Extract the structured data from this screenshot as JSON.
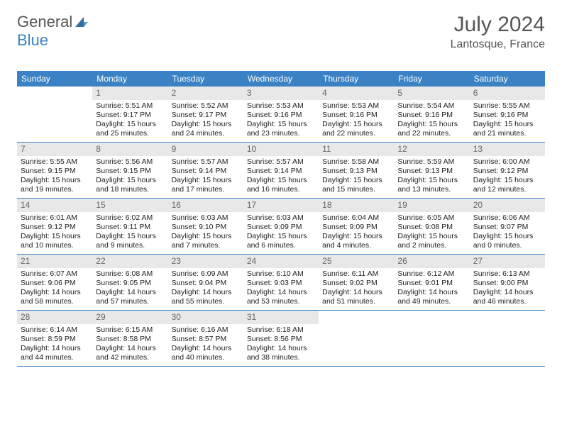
{
  "brand": {
    "word1": "General",
    "word2": "Blue"
  },
  "title": {
    "month": "July 2024",
    "location": "Lantosque, France"
  },
  "colors": {
    "header_bg": "#3b82c4",
    "header_text": "#ffffff",
    "daynum_bg": "#e8e8e8",
    "daynum_text": "#666666",
    "text": "#222222",
    "rule": "#3b82c4",
    "title_text": "#555555"
  },
  "daynames": [
    "Sunday",
    "Monday",
    "Tuesday",
    "Wednesday",
    "Thursday",
    "Friday",
    "Saturday"
  ],
  "weeks": [
    [
      null,
      {
        "n": "1",
        "sr": "5:51 AM",
        "ss": "9:17 PM",
        "dl": "15 hours and 25 minutes."
      },
      {
        "n": "2",
        "sr": "5:52 AM",
        "ss": "9:17 PM",
        "dl": "15 hours and 24 minutes."
      },
      {
        "n": "3",
        "sr": "5:53 AM",
        "ss": "9:16 PM",
        "dl": "15 hours and 23 minutes."
      },
      {
        "n": "4",
        "sr": "5:53 AM",
        "ss": "9:16 PM",
        "dl": "15 hours and 22 minutes."
      },
      {
        "n": "5",
        "sr": "5:54 AM",
        "ss": "9:16 PM",
        "dl": "15 hours and 22 minutes."
      },
      {
        "n": "6",
        "sr": "5:55 AM",
        "ss": "9:16 PM",
        "dl": "15 hours and 21 minutes."
      }
    ],
    [
      {
        "n": "7",
        "sr": "5:55 AM",
        "ss": "9:15 PM",
        "dl": "15 hours and 19 minutes."
      },
      {
        "n": "8",
        "sr": "5:56 AM",
        "ss": "9:15 PM",
        "dl": "15 hours and 18 minutes."
      },
      {
        "n": "9",
        "sr": "5:57 AM",
        "ss": "9:14 PM",
        "dl": "15 hours and 17 minutes."
      },
      {
        "n": "10",
        "sr": "5:57 AM",
        "ss": "9:14 PM",
        "dl": "15 hours and 16 minutes."
      },
      {
        "n": "11",
        "sr": "5:58 AM",
        "ss": "9:13 PM",
        "dl": "15 hours and 15 minutes."
      },
      {
        "n": "12",
        "sr": "5:59 AM",
        "ss": "9:13 PM",
        "dl": "15 hours and 13 minutes."
      },
      {
        "n": "13",
        "sr": "6:00 AM",
        "ss": "9:12 PM",
        "dl": "15 hours and 12 minutes."
      }
    ],
    [
      {
        "n": "14",
        "sr": "6:01 AM",
        "ss": "9:12 PM",
        "dl": "15 hours and 10 minutes."
      },
      {
        "n": "15",
        "sr": "6:02 AM",
        "ss": "9:11 PM",
        "dl": "15 hours and 9 minutes."
      },
      {
        "n": "16",
        "sr": "6:03 AM",
        "ss": "9:10 PM",
        "dl": "15 hours and 7 minutes."
      },
      {
        "n": "17",
        "sr": "6:03 AM",
        "ss": "9:09 PM",
        "dl": "15 hours and 6 minutes."
      },
      {
        "n": "18",
        "sr": "6:04 AM",
        "ss": "9:09 PM",
        "dl": "15 hours and 4 minutes."
      },
      {
        "n": "19",
        "sr": "6:05 AM",
        "ss": "9:08 PM",
        "dl": "15 hours and 2 minutes."
      },
      {
        "n": "20",
        "sr": "6:06 AM",
        "ss": "9:07 PM",
        "dl": "15 hours and 0 minutes."
      }
    ],
    [
      {
        "n": "21",
        "sr": "6:07 AM",
        "ss": "9:06 PM",
        "dl": "14 hours and 58 minutes."
      },
      {
        "n": "22",
        "sr": "6:08 AM",
        "ss": "9:05 PM",
        "dl": "14 hours and 57 minutes."
      },
      {
        "n": "23",
        "sr": "6:09 AM",
        "ss": "9:04 PM",
        "dl": "14 hours and 55 minutes."
      },
      {
        "n": "24",
        "sr": "6:10 AM",
        "ss": "9:03 PM",
        "dl": "14 hours and 53 minutes."
      },
      {
        "n": "25",
        "sr": "6:11 AM",
        "ss": "9:02 PM",
        "dl": "14 hours and 51 minutes."
      },
      {
        "n": "26",
        "sr": "6:12 AM",
        "ss": "9:01 PM",
        "dl": "14 hours and 49 minutes."
      },
      {
        "n": "27",
        "sr": "6:13 AM",
        "ss": "9:00 PM",
        "dl": "14 hours and 46 minutes."
      }
    ],
    [
      {
        "n": "28",
        "sr": "6:14 AM",
        "ss": "8:59 PM",
        "dl": "14 hours and 44 minutes."
      },
      {
        "n": "29",
        "sr": "6:15 AM",
        "ss": "8:58 PM",
        "dl": "14 hours and 42 minutes."
      },
      {
        "n": "30",
        "sr": "6:16 AM",
        "ss": "8:57 PM",
        "dl": "14 hours and 40 minutes."
      },
      {
        "n": "31",
        "sr": "6:18 AM",
        "ss": "8:56 PM",
        "dl": "14 hours and 38 minutes."
      },
      null,
      null,
      null
    ]
  ],
  "labels": {
    "sunrise": "Sunrise: ",
    "sunset": "Sunset: ",
    "daylight": "Daylight: "
  }
}
